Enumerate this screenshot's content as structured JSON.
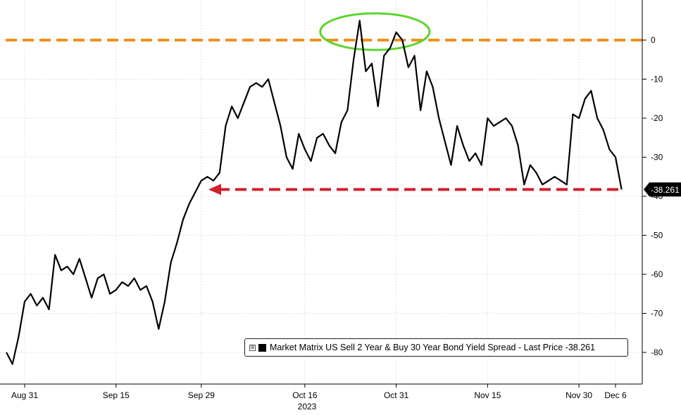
{
  "chart_data": {
    "type": "line",
    "year_label": "2023",
    "x_ticks": [
      "Aug 31",
      "Sep 15",
      "Sep 29",
      "Oct 16",
      "Oct 31",
      "Nov 15",
      "Nov 30",
      "Dec 6"
    ],
    "y_ticks": [
      "0",
      "-10",
      "-20",
      "-30",
      "-40",
      "-50",
      "-60",
      "-70",
      "-80"
    ],
    "ylim": [
      -88,
      10
    ],
    "last_price_label": "-38.261",
    "last_value": -38.261,
    "legend": {
      "toggle": "⊞",
      "text": "Market Matrix US Sell 2 Year & Buy 30 Year Bond Yield Spread - Last Price -38.261"
    },
    "annotations": {
      "upper_reference_level": 0,
      "lower_reference_level": -38.261,
      "upper_color": "#f0911e",
      "lower_color": "#d0202a",
      "circle_color": "#5cd42a",
      "circle_range_dates": [
        "Oct 22",
        "Nov 2"
      ]
    },
    "series": [
      {
        "color": "#000000",
        "points": [
          [
            "Aug 28",
            -80
          ],
          [
            "Aug 29",
            -83
          ],
          [
            "Aug 30",
            -76
          ],
          [
            "Aug 31",
            -67
          ],
          [
            "Sep 1",
            -65
          ],
          [
            "Sep 2",
            -68
          ],
          [
            "Sep 3",
            -66
          ],
          [
            "Sep 4",
            -69
          ],
          [
            "Sep 5",
            -55
          ],
          [
            "Sep 6",
            -59
          ],
          [
            "Sep 7",
            -58
          ],
          [
            "Sep 8",
            -60
          ],
          [
            "Sep 9",
            -56
          ],
          [
            "Sep 10",
            -61
          ],
          [
            "Sep 11",
            -66
          ],
          [
            "Sep 12",
            -61
          ],
          [
            "Sep 13",
            -60
          ],
          [
            "Sep 14",
            -65
          ],
          [
            "Sep 15",
            -64
          ],
          [
            "Sep 16",
            -62
          ],
          [
            "Sep 17",
            -63
          ],
          [
            "Sep 18",
            -61
          ],
          [
            "Sep 19",
            -64
          ],
          [
            "Sep 20",
            -63
          ],
          [
            "Sep 21",
            -67
          ],
          [
            "Sep 22",
            -74
          ],
          [
            "Sep 23",
            -67
          ],
          [
            "Sep 24",
            -57
          ],
          [
            "Sep 25",
            -52
          ],
          [
            "Sep 26",
            -46
          ],
          [
            "Sep 27",
            -42
          ],
          [
            "Sep 28",
            -39
          ],
          [
            "Sep 29",
            -36
          ],
          [
            "Sep 30",
            -35
          ],
          [
            "Oct 1",
            -36
          ],
          [
            "Oct 2",
            -34
          ],
          [
            "Oct 3",
            -22
          ],
          [
            "Oct 4",
            -17
          ],
          [
            "Oct 5",
            -20
          ],
          [
            "Oct 6",
            -16
          ],
          [
            "Oct 7",
            -12
          ],
          [
            "Oct 8",
            -11
          ],
          [
            "Oct 9",
            -12
          ],
          [
            "Oct 10",
            -10
          ],
          [
            "Oct 11",
            -16
          ],
          [
            "Oct 12",
            -22
          ],
          [
            "Oct 13",
            -30
          ],
          [
            "Oct 14",
            -33
          ],
          [
            "Oct 15",
            -24
          ],
          [
            "Oct 16",
            -28
          ],
          [
            "Oct 17",
            -31
          ],
          [
            "Oct 18",
            -25
          ],
          [
            "Oct 19",
            -24
          ],
          [
            "Oct 20",
            -27
          ],
          [
            "Oct 21",
            -29
          ],
          [
            "Oct 22",
            -21
          ],
          [
            "Oct 23",
            -18
          ],
          [
            "Oct 24",
            -5
          ],
          [
            "Oct 25",
            5
          ],
          [
            "Oct 26",
            -8
          ],
          [
            "Oct 27",
            -6
          ],
          [
            "Oct 28",
            -17
          ],
          [
            "Oct 29",
            -4
          ],
          [
            "Oct 30",
            -2
          ],
          [
            "Oct 31",
            2
          ],
          [
            "Nov 1",
            0
          ],
          [
            "Nov 2",
            -7
          ],
          [
            "Nov 3",
            -4
          ],
          [
            "Nov 4",
            -18
          ],
          [
            "Nov 5",
            -8
          ],
          [
            "Nov 6",
            -12
          ],
          [
            "Nov 7",
            -20
          ],
          [
            "Nov 8",
            -26
          ],
          [
            "Nov 9",
            -32
          ],
          [
            "Nov 10",
            -22
          ],
          [
            "Nov 11",
            -27
          ],
          [
            "Nov 12",
            -31
          ],
          [
            "Nov 13",
            -29
          ],
          [
            "Nov 14",
            -32
          ],
          [
            "Nov 15",
            -20
          ],
          [
            "Nov 16",
            -22
          ],
          [
            "Nov 17",
            -21
          ],
          [
            "Nov 18",
            -20
          ],
          [
            "Nov 19",
            -22
          ],
          [
            "Nov 20",
            -27
          ],
          [
            "Nov 21",
            -37
          ],
          [
            "Nov 22",
            -32
          ],
          [
            "Nov 23",
            -34
          ],
          [
            "Nov 24",
            -37
          ],
          [
            "Nov 25",
            -36
          ],
          [
            "Nov 26",
            -35
          ],
          [
            "Nov 27",
            -36
          ],
          [
            "Nov 28",
            -37
          ],
          [
            "Nov 29",
            -19
          ],
          [
            "Nov 30",
            -20
          ],
          [
            "Dec 1",
            -15
          ],
          [
            "Dec 2",
            -13
          ],
          [
            "Dec 3",
            -20
          ],
          [
            "Dec 4",
            -23
          ],
          [
            "Dec 5",
            -28
          ],
          [
            "Dec 6",
            -30
          ],
          [
            "Dec 7",
            -38.261
          ]
        ]
      }
    ]
  }
}
